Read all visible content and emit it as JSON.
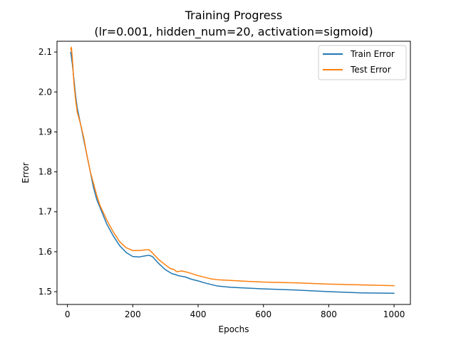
{
  "chart_data": {
    "type": "line",
    "title": "Training Progress",
    "subtitle": "(lr=0.001, hidden_num=20, activation=sigmoid)",
    "xlabel": "Epochs",
    "ylabel": "Error",
    "xlim": [
      -32,
      1050
    ],
    "ylim": [
      1.468,
      2.127
    ],
    "xticks": [
      0,
      200,
      400,
      600,
      800,
      1000
    ],
    "xtick_labels": [
      "0",
      "200",
      "400",
      "600",
      "800",
      "1000"
    ],
    "yticks": [
      1.5,
      1.6,
      1.7,
      1.8,
      1.9,
      2.0,
      2.1
    ],
    "ytick_labels": [
      "1.5",
      "1.6",
      "1.7",
      "1.8",
      "1.9",
      "2.0",
      "2.1"
    ],
    "grid": false,
    "legend": {
      "position": "top-right"
    },
    "series": [
      {
        "name": "Train Error",
        "color": "#1f77b4",
        "x": [
          10,
          15,
          20,
          25,
          30,
          40,
          50,
          60,
          70,
          80,
          90,
          100,
          120,
          140,
          160,
          180,
          200,
          220,
          240,
          250,
          260,
          280,
          300,
          320,
          330,
          340,
          360,
          380,
          400,
          420,
          440,
          460,
          500,
          550,
          600,
          700,
          800,
          900,
          1000
        ],
        "y": [
          2.1,
          2.07,
          2.03,
          1.99,
          1.96,
          1.92,
          1.88,
          1.84,
          1.8,
          1.76,
          1.73,
          1.71,
          1.67,
          1.64,
          1.615,
          1.598,
          1.588,
          1.587,
          1.59,
          1.591,
          1.588,
          1.57,
          1.555,
          1.545,
          1.543,
          1.54,
          1.537,
          1.531,
          1.527,
          1.522,
          1.518,
          1.514,
          1.511,
          1.509,
          1.507,
          1.504,
          1.5,
          1.497,
          1.496
        ]
      },
      {
        "name": "Test Error",
        "color": "#ff7f0e",
        "x": [
          10,
          12,
          15,
          20,
          25,
          30,
          40,
          50,
          60,
          70,
          80,
          90,
          100,
          120,
          140,
          160,
          180,
          200,
          220,
          240,
          250,
          260,
          280,
          300,
          315,
          325,
          335,
          350,
          370,
          400,
          420,
          440,
          460,
          500,
          550,
          600,
          700,
          800,
          900,
          1000
        ],
        "y": [
          2.105,
          2.112,
          2.085,
          2.02,
          1.98,
          1.95,
          1.92,
          1.885,
          1.84,
          1.8,
          1.77,
          1.74,
          1.715,
          1.68,
          1.65,
          1.625,
          1.61,
          1.603,
          1.603,
          1.605,
          1.605,
          1.597,
          1.58,
          1.567,
          1.558,
          1.556,
          1.55,
          1.552,
          1.548,
          1.54,
          1.536,
          1.532,
          1.53,
          1.528,
          1.526,
          1.524,
          1.522,
          1.519,
          1.517,
          1.515
        ]
      }
    ]
  }
}
